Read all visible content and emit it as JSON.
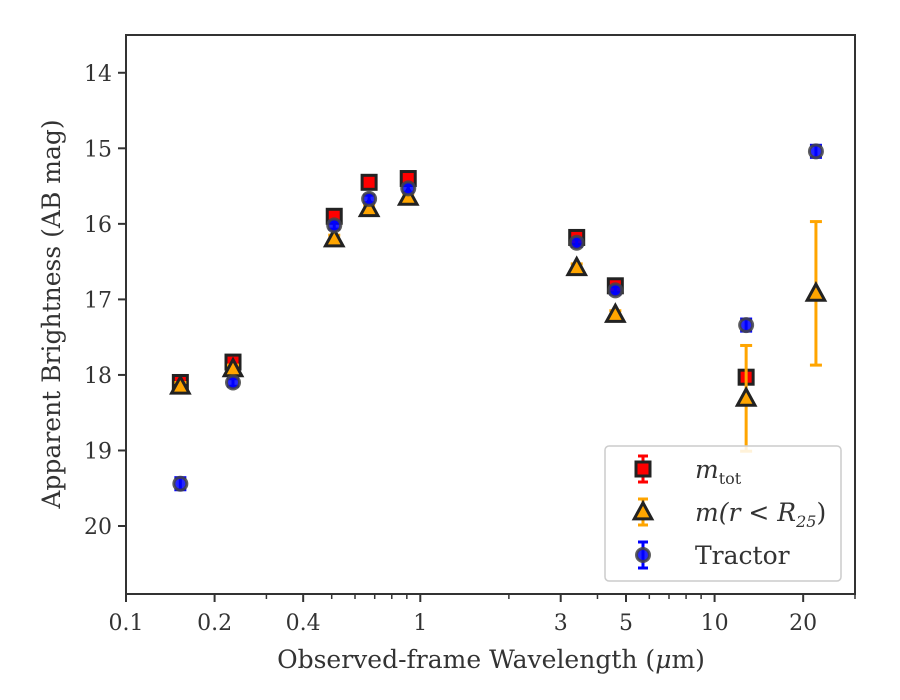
{
  "chart_data": {
    "type": "scatter",
    "x_scale": "log",
    "y_inverted": true,
    "xlabel_parts": [
      "Observed-frame Wavelength (",
      "μ",
      "m)"
    ],
    "ylabel": "Apparent Brightness (AB mag)",
    "xlim": [
      0.1,
      30
    ],
    "ylim": [
      20.9,
      13.5
    ],
    "x_ticks": [
      {
        "value": 0.1,
        "label": "0.1"
      },
      {
        "value": 0.2,
        "label": "0.2"
      },
      {
        "value": 0.4,
        "label": "0.4"
      },
      {
        "value": 1,
        "label": "1"
      },
      {
        "value": 3,
        "label": "3"
      },
      {
        "value": 5,
        "label": "5"
      },
      {
        "value": 10,
        "label": "10"
      },
      {
        "value": 20,
        "label": "20"
      }
    ],
    "x_minor_ticks": [
      0.3,
      0.5,
      0.6,
      0.7,
      0.8,
      0.9,
      2,
      4,
      6,
      7,
      8,
      9,
      30
    ],
    "y_ticks": [
      {
        "value": 14,
        "label": "14"
      },
      {
        "value": 15,
        "label": "15"
      },
      {
        "value": 16,
        "label": "16"
      },
      {
        "value": 17,
        "label": "17"
      },
      {
        "value": 18,
        "label": "18"
      },
      {
        "value": 19,
        "label": "19"
      },
      {
        "value": 20,
        "label": "20"
      }
    ],
    "grid": false,
    "legend_position": "bottom-right",
    "series": [
      {
        "name": "m_tot",
        "legend_label": {
          "main": "m",
          "sub": "tot",
          "rest": ""
        },
        "marker": "square",
        "color": "#ff0000",
        "edge": "#222222",
        "error_color": "#ff0000",
        "points": [
          {
            "x": 0.153,
            "y": 18.1,
            "err": 0.05
          },
          {
            "x": 0.231,
            "y": 17.83,
            "err": 0.05
          },
          {
            "x": 0.51,
            "y": 15.9,
            "err": 0.05
          },
          {
            "x": 0.67,
            "y": 15.45,
            "err": 0.05
          },
          {
            "x": 0.91,
            "y": 15.4,
            "err": 0.05
          },
          {
            "x": 3.4,
            "y": 16.18,
            "err": 0.05
          },
          {
            "x": 4.6,
            "y": 16.82,
            "err": 0.05
          },
          {
            "x": 12.8,
            "y": 18.03,
            "err": 0.05
          }
        ]
      },
      {
        "name": "m(r<R_25)",
        "legend_label": {
          "main": "m(r < R",
          "sub": "25",
          "rest": ")"
        },
        "marker": "triangle",
        "color": "#ffa500",
        "edge": "#222222",
        "error_color": "#ffa500",
        "points": [
          {
            "x": 0.153,
            "y": 18.15,
            "err": 0.05
          },
          {
            "x": 0.231,
            "y": 17.92,
            "err": 0.05
          },
          {
            "x": 0.51,
            "y": 16.2,
            "err": 0.05
          },
          {
            "x": 0.67,
            "y": 15.8,
            "err": 0.05
          },
          {
            "x": 0.91,
            "y": 15.65,
            "err": 0.05
          },
          {
            "x": 3.4,
            "y": 16.58,
            "err": 0.05
          },
          {
            "x": 4.6,
            "y": 17.2,
            "err": 0.05
          },
          {
            "x": 12.8,
            "y": 18.31,
            "err": 0.7
          },
          {
            "x": 22.1,
            "y": 16.92,
            "err": 0.95
          }
        ]
      },
      {
        "name": "Tractor",
        "legend_label": {
          "main": "Tractor",
          "sub": "",
          "rest": ""
        },
        "marker": "circle",
        "color": "#0000ff",
        "edge": "#444444",
        "error_color": "#0000ff",
        "points": [
          {
            "x": 0.153,
            "y": 19.44,
            "err": 0.08
          },
          {
            "x": 0.231,
            "y": 18.1,
            "err": 0.05
          },
          {
            "x": 0.51,
            "y": 16.02,
            "err": 0.05
          },
          {
            "x": 0.67,
            "y": 15.67,
            "err": 0.05
          },
          {
            "x": 0.91,
            "y": 15.53,
            "err": 0.05
          },
          {
            "x": 3.4,
            "y": 16.25,
            "err": 0.05
          },
          {
            "x": 4.6,
            "y": 16.88,
            "err": 0.05
          },
          {
            "x": 12.8,
            "y": 17.34,
            "err": 0.08
          },
          {
            "x": 22.1,
            "y": 15.04,
            "err": 0.08
          }
        ]
      }
    ]
  }
}
